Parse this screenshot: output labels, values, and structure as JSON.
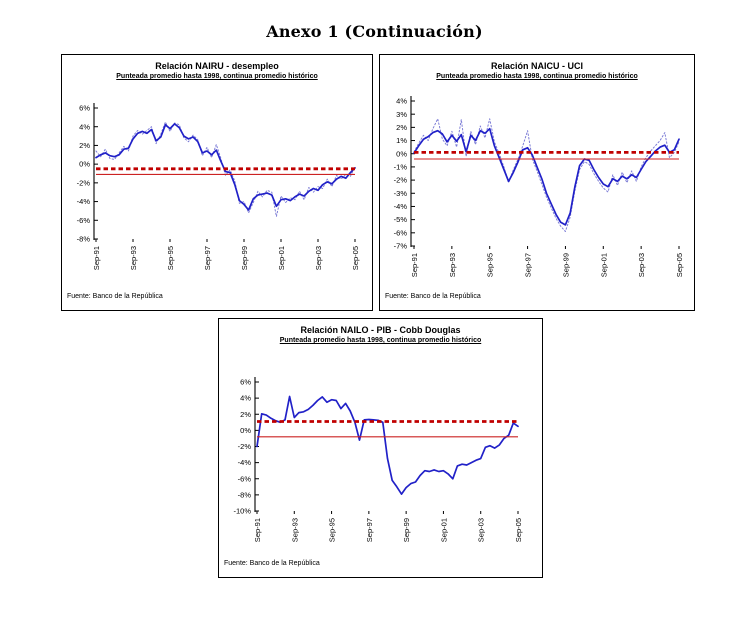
{
  "page": {
    "title": "Anexo 1 (Continuación)"
  },
  "chart_data": [
    {
      "type": "line",
      "title": "Relación NAIRU - desempleo",
      "subtitle": "Punteada promedio hasta 1998, continua promedio histórico",
      "source": "Fuente: Banco de la República",
      "x_frequency": "quarterly Sep-91 to Sep-05",
      "x_tick_labels": [
        "Sep-91",
        "Sep-93",
        "Sep-95",
        "Sep-97",
        "Sep-99",
        "Sep-01",
        "Sep-03",
        "Sep-05"
      ],
      "ylim": [
        -8,
        6
      ],
      "ytick_step": 2,
      "y_tick_labels": [
        "6%",
        "4%",
        "2%",
        "0%",
        "-2%",
        "-4%",
        "-6%",
        "-8%"
      ],
      "grid": false,
      "legend": "none",
      "series": [
        {
          "name": "Continua - promedio histórico",
          "style": "solid",
          "color": "#2121c8",
          "values": [
            0.7,
            1.0,
            1.2,
            0.9,
            0.8,
            1.0,
            1.6,
            1.7,
            2.7,
            3.3,
            3.5,
            3.3,
            3.7,
            2.5,
            2.9,
            4.2,
            3.8,
            4.3,
            3.9,
            3.0,
            2.7,
            2.9,
            2.4,
            1.2,
            1.4,
            1.0,
            1.5,
            0.3,
            -0.8,
            -0.9,
            -2.2,
            -3.9,
            -4.3,
            -4.9,
            -3.7,
            -3.3,
            -3.2,
            -3.1,
            -3.3,
            -4.5,
            -3.8,
            -3.7,
            -3.9,
            -3.5,
            -3.2,
            -3.4,
            -2.9,
            -2.6,
            -2.8,
            -2.2,
            -1.9,
            -2.1,
            -1.6,
            -1.3,
            -1.5,
            -0.9,
            -0.4
          ]
        },
        {
          "name": "Punteada - promedio hasta 1998",
          "style": "dotted",
          "color": "#7d7dd6",
          "values": [
            1.4,
            0.8,
            1.6,
            0.6,
            0.5,
            1.2,
            1.9,
            1.4,
            3.0,
            3.6,
            3.2,
            3.6,
            4.0,
            2.2,
            3.2,
            4.5,
            3.5,
            4.4,
            4.2,
            2.8,
            2.4,
            3.1,
            2.6,
            0.9,
            1.8,
            0.7,
            2.1,
            0.6,
            -1.2,
            -0.6,
            -1.8,
            -4.2,
            -4.0,
            -5.2,
            -4.1,
            -2.9,
            -3.5,
            -2.8,
            -3.0,
            -5.6,
            -3.4,
            -4.1,
            -3.6,
            -3.8,
            -2.9,
            -3.8,
            -2.5,
            -3.0,
            -2.4,
            -2.6,
            -1.6,
            -2.4,
            -1.2,
            -1.6,
            -1.1,
            -1.3,
            -0.3
          ]
        }
      ],
      "ref_lines": [
        {
          "style": "dashed",
          "color": "#c00000",
          "value": -0.5
        },
        {
          "style": "solid",
          "color": "#cc2222",
          "value": -1.1
        }
      ]
    },
    {
      "type": "line",
      "title": "Relación NAICU - UCI",
      "subtitle": "Punteada promedio hasta 1998, continua promedio histórico",
      "source": "Fuente: Banco de la República",
      "x_frequency": "quarterly Sep-91 to Sep-05",
      "x_tick_labels": [
        "Sep-91",
        "Sep-93",
        "Sep-95",
        "Sep-97",
        "Sep-99",
        "Sep-01",
        "Sep-03",
        "Sep-05"
      ],
      "ylim": [
        -7,
        4
      ],
      "ytick_step": 1,
      "y_tick_labels": [
        "4%",
        "3%",
        "2%",
        "1%",
        "0%",
        "-1%",
        "-2%",
        "-3%",
        "-4%",
        "-5%",
        "-6%",
        "-7%"
      ],
      "grid": false,
      "legend": "none",
      "series": [
        {
          "name": "Continua - promedio histórico",
          "style": "solid",
          "color": "#2121c8",
          "values": [
            0.05,
            0.6,
            1.1,
            1.3,
            1.6,
            1.75,
            1.5,
            0.9,
            1.4,
            0.95,
            1.45,
            0.15,
            1.4,
            1.0,
            1.75,
            1.55,
            1.9,
            0.6,
            -0.3,
            -1.2,
            -2.1,
            -1.4,
            -0.6,
            0.3,
            0.45,
            -0.1,
            -1.0,
            -1.9,
            -3.0,
            -3.8,
            -4.6,
            -5.2,
            -5.4,
            -4.5,
            -2.5,
            -0.9,
            -0.4,
            -0.5,
            -1.2,
            -1.8,
            -2.3,
            -2.5,
            -1.9,
            -2.1,
            -1.7,
            -1.9,
            -1.6,
            -1.8,
            -1.2,
            -0.6,
            -0.2,
            0.2,
            0.5,
            0.65,
            0.1,
            0.3,
            1.1
          ]
        },
        {
          "name": "Punteada - promedio hasta 1998",
          "style": "dotted",
          "color": "#7d7dd6",
          "values": [
            0.15,
            0.8,
            1.4,
            1.0,
            1.9,
            2.65,
            1.1,
            0.6,
            1.7,
            0.5,
            2.6,
            -0.2,
            1.7,
            0.7,
            2.1,
            1.2,
            2.65,
            0.9,
            0.0,
            -1.0,
            -2.2,
            -1.2,
            -0.4,
            0.6,
            1.75,
            -0.4,
            -1.3,
            -2.3,
            -3.3,
            -4.1,
            -4.9,
            -5.5,
            -5.9,
            -4.8,
            -2.8,
            -1.2,
            -0.6,
            -0.8,
            -1.5,
            -2.1,
            -2.6,
            -2.9,
            -1.6,
            -2.4,
            -1.4,
            -2.2,
            -1.3,
            -2.1,
            -1.0,
            -0.3,
            0.2,
            0.6,
            1.0,
            1.6,
            -0.3,
            0.1,
            0.9
          ]
        }
      ],
      "ref_lines": [
        {
          "style": "dashed",
          "color": "#c00000",
          "value": 0.1
        },
        {
          "style": "solid",
          "color": "#cc2222",
          "value": -0.4
        }
      ]
    },
    {
      "type": "line",
      "title": "Relación NAILO - PIB - Cobb Douglas",
      "subtitle": "Punteada promedio hasta 1998, continua promedio histórico",
      "source": "Fuente: Banco de la República",
      "x_frequency": "quarterly Sep-91 to Sep-05",
      "x_tick_labels": [
        "Sep-91",
        "Sep-93",
        "Sep-95",
        "Sep-97",
        "Sep-99",
        "Sep-01",
        "Sep-03",
        "Sep-05"
      ],
      "ylim": [
        -10,
        6
      ],
      "ytick_step": 2,
      "y_tick_labels": [
        "6%",
        "4%",
        "2%",
        "0%",
        "-2%",
        "-4%",
        "-6%",
        "-8%",
        "-10%"
      ],
      "grid": false,
      "legend": "none",
      "series": [
        {
          "name": "Continua - promedio histórico",
          "style": "solid",
          "color": "#2121c8",
          "values": [
            -2.0,
            2.05,
            1.9,
            1.5,
            1.2,
            1.0,
            1.3,
            4.2,
            1.6,
            2.2,
            2.3,
            2.6,
            3.1,
            3.7,
            4.15,
            3.5,
            3.8,
            3.7,
            2.7,
            3.35,
            2.4,
            1.0,
            -1.2,
            1.3,
            1.35,
            1.3,
            1.25,
            1.0,
            -3.5,
            -6.2,
            -7.0,
            -7.9,
            -7.1,
            -6.6,
            -6.4,
            -5.6,
            -5.0,
            -5.1,
            -4.9,
            -5.1,
            -5.0,
            -5.4,
            -6.0,
            -4.4,
            -4.2,
            -4.3,
            -4.0,
            -3.7,
            -3.5,
            -2.1,
            -1.9,
            -2.2,
            -1.8,
            -1.0,
            -0.6,
            0.9,
            0.5
          ]
        }
      ],
      "ref_lines": [
        {
          "style": "dashed",
          "color": "#c00000",
          "value": 1.1
        },
        {
          "style": "solid",
          "color": "#cc2222",
          "value": -0.8
        }
      ]
    }
  ]
}
